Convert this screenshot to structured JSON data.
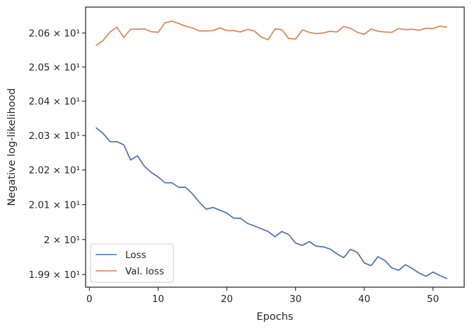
{
  "chart_data": {
    "type": "line",
    "title": "",
    "xlabel": "Epochs",
    "ylabel": "Negative log-likelihood",
    "x": [
      1,
      2,
      3,
      4,
      5,
      6,
      7,
      8,
      9,
      10,
      11,
      12,
      13,
      14,
      15,
      16,
      17,
      18,
      19,
      20,
      21,
      22,
      23,
      24,
      25,
      26,
      27,
      28,
      29,
      30,
      31,
      32,
      33,
      34,
      35,
      36,
      37,
      38,
      39,
      40,
      41,
      42,
      43,
      44,
      45,
      46,
      47,
      48,
      49,
      50,
      51,
      52
    ],
    "xlim": [
      -0.55,
      54.55
    ],
    "ylim": [
      19.864,
      20.6765
    ],
    "xticks": [
      0,
      10,
      20,
      30,
      40,
      50
    ],
    "yticks": [
      {
        "value": 19.9,
        "label": "1.99 × 10¹"
      },
      {
        "value": 20.0,
        "label": "2 × 10¹"
      },
      {
        "value": 20.1,
        "label": "2.01 × 10¹"
      },
      {
        "value": 20.2,
        "label": "2.02 × 10¹"
      },
      {
        "value": 20.3,
        "label": "2.03 × 10¹"
      },
      {
        "value": 20.4,
        "label": "2.04 × 10¹"
      },
      {
        "value": 20.5,
        "label": "2.05 × 10¹"
      },
      {
        "value": 20.6,
        "label": "2.06 × 10¹"
      }
    ],
    "y_scale": "log",
    "grid": false,
    "legend_position": "lower left",
    "series": [
      {
        "name": "Loss",
        "color": "#4c72b0",
        "values": [
          20.322,
          20.306,
          20.282,
          20.282,
          20.273,
          20.229,
          20.241,
          20.211,
          20.193,
          20.18,
          20.163,
          20.163,
          20.15,
          20.15,
          20.131,
          20.107,
          20.087,
          20.092,
          20.084,
          20.076,
          20.061,
          20.061,
          20.046,
          20.039,
          20.031,
          20.023,
          20.008,
          20.023,
          20.014,
          19.99,
          19.983,
          19.994,
          19.981,
          19.979,
          19.973,
          19.959,
          19.948,
          19.972,
          19.963,
          19.933,
          19.925,
          19.951,
          19.94,
          19.919,
          19.912,
          19.928,
          19.917,
          19.904,
          19.895,
          19.907,
          19.897,
          19.889
        ]
      },
      {
        "name": "Val. loss",
        "color": "#dd8452",
        "values": [
          20.564,
          20.578,
          20.603,
          20.617,
          20.587,
          20.611,
          20.611,
          20.612,
          20.604,
          20.602,
          20.63,
          20.635,
          20.628,
          20.62,
          20.615,
          20.606,
          20.606,
          20.607,
          20.615,
          20.607,
          20.607,
          20.603,
          20.611,
          20.606,
          20.588,
          20.58,
          20.612,
          20.61,
          20.584,
          20.582,
          20.609,
          20.602,
          20.598,
          20.6,
          20.605,
          20.603,
          20.619,
          20.614,
          20.602,
          20.596,
          20.612,
          20.605,
          20.603,
          20.602,
          20.613,
          20.61,
          20.611,
          20.608,
          20.614,
          20.613,
          20.62,
          20.617
        ]
      }
    ]
  }
}
